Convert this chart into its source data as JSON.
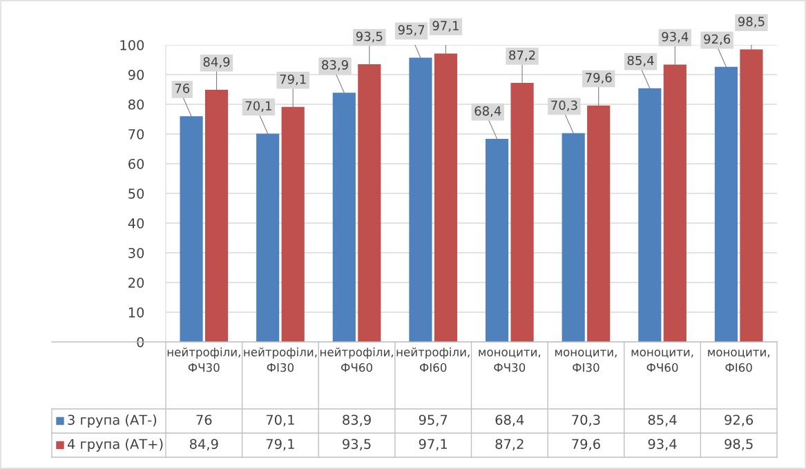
{
  "chart_data": {
    "type": "bar",
    "categories": [
      "нейтрофіли, ФЧ30",
      "нейтрофіли, ФІ30",
      "нейтрофіли, ФЧ60",
      "нейтрофіли, ФІ60",
      "моноцити, ФЧ30",
      "моноцити, ФІ30",
      "моноцити, ФЧ60",
      "моноцити, ФІ60"
    ],
    "series": [
      {
        "name": "3 група (АТ-)",
        "color": "#4f81bd",
        "values": [
          76,
          70.1,
          83.9,
          95.7,
          68.4,
          70.3,
          85.4,
          92.6
        ],
        "value_labels": [
          "76",
          "70,1",
          "83,9",
          "95,7",
          "68,4",
          "70,3",
          "85,4",
          "92,6"
        ]
      },
      {
        "name": "4 група (АТ+)",
        "color": "#c0504d",
        "values": [
          84.9,
          79.1,
          93.5,
          97.1,
          87.2,
          79.6,
          93.4,
          98.5
        ],
        "value_labels": [
          "84,9",
          "79,1",
          "93,5",
          "97,1",
          "87,2",
          "79,6",
          "93,4",
          "98,5"
        ]
      }
    ],
    "ylim": [
      0,
      100
    ],
    "yticks": [
      0,
      10,
      20,
      30,
      40,
      50,
      60,
      70,
      80,
      90,
      100
    ],
    "grid": "y",
    "legend": "bottom"
  }
}
